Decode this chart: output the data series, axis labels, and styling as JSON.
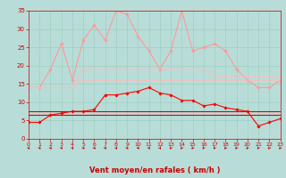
{
  "x": [
    0,
    1,
    2,
    3,
    4,
    5,
    6,
    7,
    8,
    9,
    10,
    11,
    12,
    13,
    14,
    15,
    16,
    17,
    18,
    19,
    20,
    21,
    22,
    23
  ],
  "series": [
    {
      "name": "rafales_max",
      "color": "#ff9999",
      "linewidth": 0.8,
      "marker": "D",
      "markersize": 1.8,
      "y": [
        14,
        14,
        19,
        26,
        16,
        27,
        31,
        27,
        35,
        34,
        28,
        24,
        19,
        24,
        35,
        24,
        25,
        26,
        24,
        19,
        16,
        14,
        14,
        16
      ]
    },
    {
      "name": "rafales_mean_high",
      "color": "#ffbbbb",
      "linewidth": 0.8,
      "marker": null,
      "markersize": 0,
      "y": [
        14,
        14,
        14,
        14,
        14,
        19,
        19,
        19,
        19,
        19,
        19,
        19,
        19,
        19,
        19,
        19,
        19,
        17,
        17,
        17,
        17,
        17,
        17,
        17
      ]
    },
    {
      "name": "rafales_mean_low",
      "color": "#ffbbbb",
      "linewidth": 0.8,
      "marker": null,
      "markersize": 0,
      "y": [
        14,
        14,
        14,
        14,
        14,
        16,
        16,
        16,
        16,
        16,
        16,
        16,
        16,
        16,
        16,
        16,
        16,
        16,
        16,
        16,
        16,
        16,
        16,
        16
      ]
    },
    {
      "name": "vent_max",
      "color": "#ff0000",
      "linewidth": 0.8,
      "marker": "D",
      "markersize": 1.8,
      "y": [
        4.5,
        4.5,
        6.5,
        7,
        7.5,
        7.5,
        8,
        12,
        12,
        12.5,
        13,
        14,
        12.5,
        12,
        10.5,
        10.5,
        9,
        9.5,
        8.5,
        8,
        7.5,
        3.5,
        4.5,
        5.5
      ]
    },
    {
      "name": "vent_mean_high",
      "color": "#dd0000",
      "linewidth": 0.8,
      "marker": null,
      "markersize": 0,
      "y": [
        7.5,
        7.5,
        7.5,
        7.5,
        7.5,
        7.5,
        7.5,
        7.5,
        7.5,
        7.5,
        7.5,
        7.5,
        7.5,
        7.5,
        7.5,
        7.5,
        7.5,
        7.5,
        7.5,
        7.5,
        7.5,
        7.5,
        7.5,
        7.5
      ]
    },
    {
      "name": "vent_mean_low",
      "color": "#dd0000",
      "linewidth": 0.8,
      "marker": null,
      "markersize": 0,
      "y": [
        6.5,
        6.5,
        6.5,
        6.5,
        6.5,
        6.5,
        6.5,
        6.5,
        6.5,
        6.5,
        6.5,
        6.5,
        6.5,
        6.5,
        6.5,
        6.5,
        6.5,
        6.5,
        6.5,
        6.5,
        6.5,
        6.5,
        6.5,
        6.5
      ]
    }
  ],
  "xlabel": "Vent moyen/en rafales ( km/h )",
  "xlim": [
    0,
    23
  ],
  "ylim": [
    0,
    35
  ],
  "yticks": [
    0,
    5,
    10,
    15,
    20,
    25,
    30,
    35
  ],
  "xticks": [
    0,
    1,
    2,
    3,
    4,
    5,
    6,
    7,
    8,
    9,
    10,
    11,
    12,
    13,
    14,
    15,
    16,
    17,
    18,
    19,
    20,
    21,
    22,
    23
  ],
  "background_color": "#b8ddd8",
  "grid_color": "#99ccbb",
  "label_color": "#cc0000",
  "tick_color": "#cc0000",
  "arrow_angles": [
    45,
    45,
    45,
    45,
    45,
    45,
    45,
    45,
    45,
    45,
    45,
    45,
    45,
    315,
    315,
    315,
    315,
    315,
    315,
    315,
    315,
    315,
    315,
    315
  ]
}
